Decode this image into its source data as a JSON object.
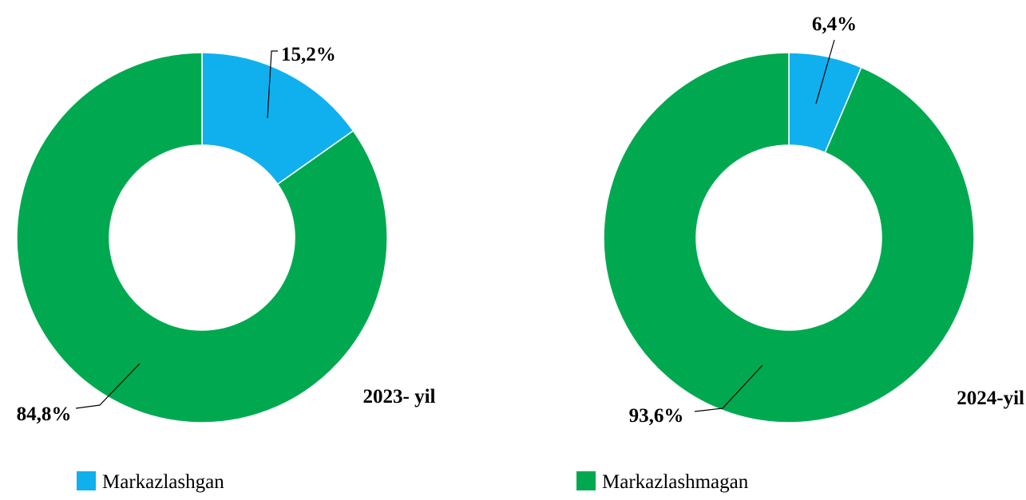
{
  "chart_data": [
    {
      "type": "pie",
      "title": "2023- yil",
      "values": [
        15.2,
        84.8
      ],
      "value_labels": [
        "15,2%",
        "84,8%"
      ],
      "donut": true
    },
    {
      "type": "pie",
      "title": "2024-yil",
      "values": [
        6.4,
        93.6
      ],
      "value_labels": [
        "6,4%",
        "93,6%"
      ],
      "donut": true
    }
  ],
  "legend": {
    "names": [
      "Markazlashgan",
      "Markazlashmagan"
    ],
    "colors": [
      "#10b0ee",
      "#00a94f"
    ]
  }
}
